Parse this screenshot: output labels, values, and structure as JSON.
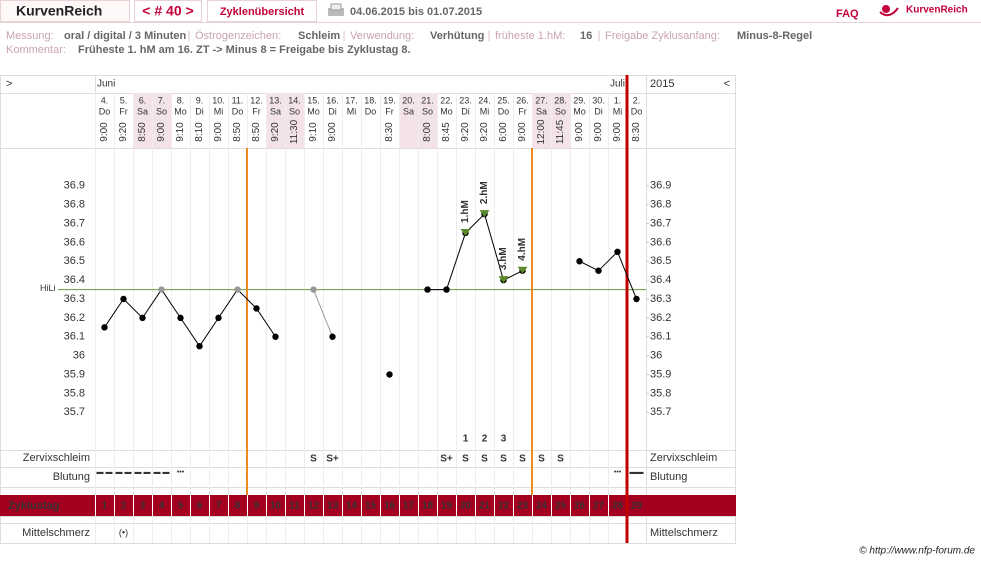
{
  "header": {
    "logo": "KurvenReich",
    "cycle_nav": "< # 40 >",
    "overview": "Zyklenübersicht",
    "date_range": "04.06.2015 bis 01.07.2015",
    "faq": "FAQ",
    "brand": "KurvenReich"
  },
  "info": {
    "items": [
      {
        "label": "Messung:",
        "value": "oral / digital / 3 Minuten"
      },
      {
        "label": "Östrogenzeichen:",
        "value": "Schleim"
      },
      {
        "label": "Verwendung:",
        "value": "Verhütung"
      },
      {
        "label": "früheste 1.hM:",
        "value": "16"
      },
      {
        "label": "Freigabe Zyklusanfang:",
        "value": "Minus-8-Regel"
      }
    ],
    "comment_label": "Kommentar:",
    "comment": "Früheste 1. hM am 16. ZT -> Minus 8 = Freigabe bis Zyklustag 8."
  },
  "footer": "© http://www.nfp-forum.de",
  "chart_data": {
    "type": "line",
    "nav_left": ">",
    "nav_right": "<",
    "months": [
      "Juni",
      "Juli"
    ],
    "year": "2015",
    "categories": [
      1,
      2,
      3,
      4,
      5,
      6,
      7,
      8,
      9,
      10,
      11,
      12,
      13,
      14,
      15,
      16,
      17,
      18,
      19,
      20,
      21,
      22,
      23,
      24,
      25,
      26,
      27,
      28,
      29
    ],
    "dates": [
      "4.",
      "5.",
      "6.",
      "7.",
      "8.",
      "9.",
      "10.",
      "11.",
      "12.",
      "13.",
      "14.",
      "15.",
      "16.",
      "17.",
      "18.",
      "19.",
      "20.",
      "21.",
      "22.",
      "23.",
      "24.",
      "25.",
      "26.",
      "27.",
      "28.",
      "29.",
      "30.",
      "1.",
      "2."
    ],
    "weekdays": [
      "Do",
      "Fr",
      "Sa",
      "So",
      "Mo",
      "Di",
      "Mi",
      "Do",
      "Fr",
      "Sa",
      "So",
      "Mo",
      "Di",
      "Mi",
      "Do",
      "Fr",
      "Sa",
      "So",
      "Mo",
      "Di",
      "Mi",
      "Do",
      "Fr",
      "Sa",
      "So",
      "Mo",
      "Di",
      "Mi",
      "Do"
    ],
    "times": [
      "9:00",
      "9:20",
      "8:50",
      "9:00",
      "9:10",
      "8:10",
      "9:00",
      "8:50",
      "8:50",
      "9:20",
      "11:30",
      "9:10",
      "9:00",
      null,
      null,
      "8:30",
      null,
      "8:00",
      "8:45",
      "9:20",
      "9:20",
      "6:00",
      "9:00",
      "12:00",
      "11:45",
      "9:00",
      "9:00",
      "9:00",
      "8:30"
    ],
    "values": [
      36.15,
      36.3,
      36.2,
      36.35,
      36.2,
      36.05,
      36.2,
      36.35,
      36.25,
      36.1,
      null,
      36.35,
      36.1,
      null,
      null,
      35.9,
      null,
      36.35,
      36.35,
      36.65,
      36.75,
      36.4,
      36.45,
      null,
      null,
      36.5,
      36.45,
      36.55,
      36.3
    ],
    "color": "#000000",
    "excluded_color": "#999999",
    "excluded_days": [
      4,
      8,
      12
    ],
    "ylim": [
      35.5,
      37.1
    ],
    "yticks": [
      35.7,
      35.8,
      35.9,
      36,
      36.1,
      36.2,
      36.3,
      36.4,
      36.5,
      36.6,
      36.7,
      36.8,
      36.9
    ],
    "hili": {
      "label": "HiLi",
      "value": 36.35,
      "color": "#6b9a3c"
    },
    "annotations": [
      {
        "day": 20,
        "text": "1.hM"
      },
      {
        "day": 21,
        "text": "2.hM"
      },
      {
        "day": 22,
        "text": "3.hM"
      },
      {
        "day": 23,
        "text": "4.hM"
      }
    ],
    "annotation_color": "#5a8a2a",
    "phase_lines": [
      {
        "after_day": 8,
        "color": "#f08a1c"
      },
      {
        "after_day": 23,
        "color": "#f08a1c"
      },
      {
        "after_day": 28,
        "color": "#c00000"
      }
    ],
    "row_labels": {
      "cervix": "Zervixschleim",
      "bleeding": "Blutung",
      "cycle_day": "Zyklustag",
      "pain": "Mittelschmerz"
    },
    "cervix": [
      null,
      null,
      null,
      null,
      null,
      null,
      null,
      null,
      null,
      null,
      null,
      "S",
      "S+",
      null,
      null,
      null,
      null,
      null,
      "S+",
      "S",
      "S",
      "S",
      "S",
      "S",
      "S",
      null,
      null,
      null,
      null
    ],
    "cervix_counts": [
      null,
      null,
      null,
      null,
      null,
      null,
      null,
      null,
      null,
      null,
      null,
      null,
      null,
      null,
      null,
      null,
      null,
      null,
      null,
      1,
      2,
      3,
      null,
      null,
      null,
      null,
      null,
      null,
      null
    ],
    "bleeding": [
      "▬ ▬",
      "▬ ▬",
      "▬ ▬",
      "▬ ▬",
      "•••",
      null,
      null,
      null,
      null,
      null,
      null,
      null,
      null,
      null,
      null,
      null,
      null,
      null,
      null,
      null,
      null,
      null,
      null,
      null,
      null,
      null,
      null,
      "•••",
      "▬▬"
    ],
    "pain": [
      null,
      "(•)",
      null,
      null,
      null,
      null,
      null,
      null,
      null,
      null,
      null,
      null,
      null,
      null,
      null,
      null,
      null,
      null,
      null,
      null,
      null,
      null,
      null,
      null,
      null,
      null,
      null,
      null,
      null
    ]
  }
}
